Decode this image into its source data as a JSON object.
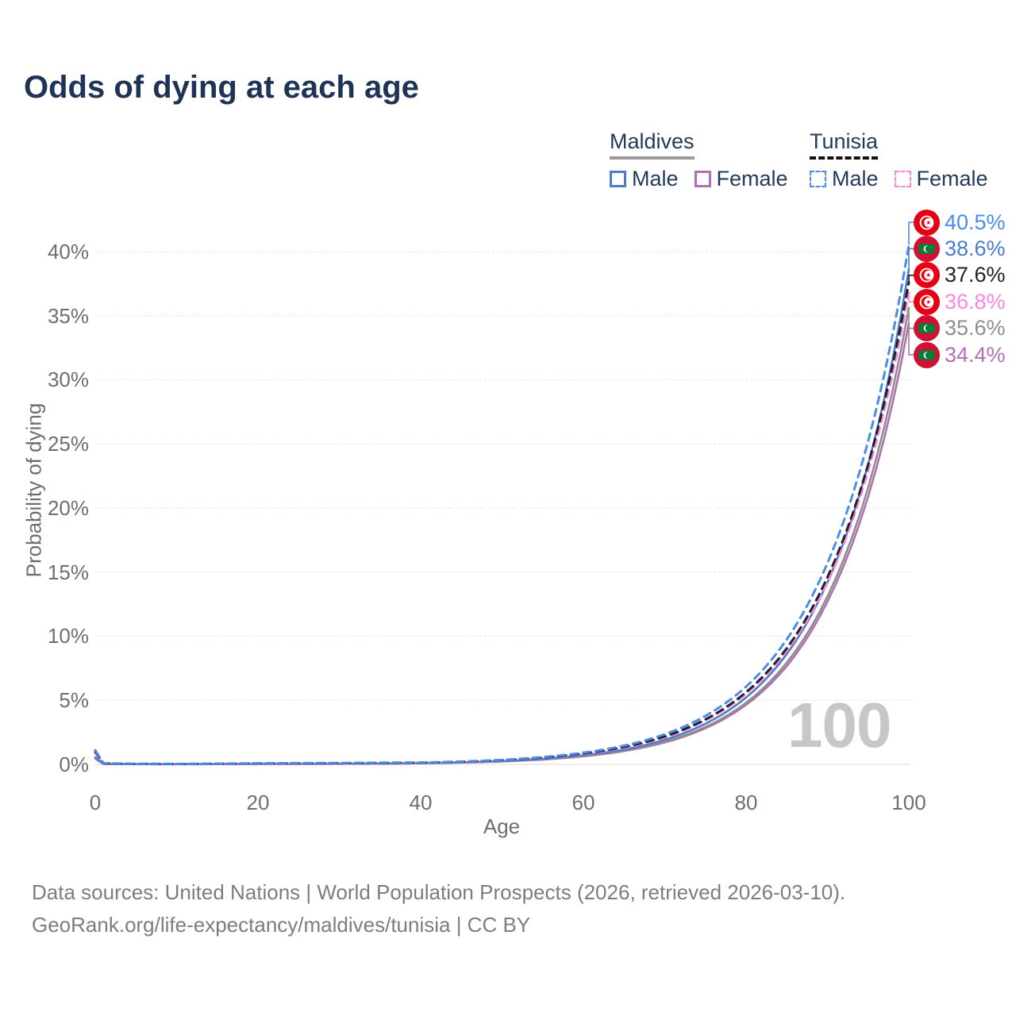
{
  "title": "Odds of dying at each age",
  "watermark": "100",
  "legend": {
    "groups": [
      {
        "country": "Maldives",
        "line_style": "solid",
        "underline_color": "#9a9a9a",
        "items": [
          {
            "label": "Male",
            "color": "#4b7ccc",
            "dashed": false
          },
          {
            "label": "Female",
            "color": "#b06fb3",
            "dashed": false
          }
        ]
      },
      {
        "country": "Tunisia",
        "line_style": "dashed",
        "underline_color": "#111111",
        "items": [
          {
            "label": "Male",
            "color": "#4a8ce8",
            "dashed": true
          },
          {
            "label": "Female",
            "color": "#f787e1",
            "dashed": true
          }
        ]
      }
    ]
  },
  "axes": {
    "x": {
      "title": "Age",
      "ticks": [
        0,
        20,
        40,
        60,
        80,
        100
      ],
      "range": [
        0,
        100
      ]
    },
    "y": {
      "title": "Probability of dying",
      "tick_labels": [
        "0%",
        "5%",
        "10%",
        "15%",
        "20%",
        "25%",
        "30%",
        "35%",
        "40%"
      ],
      "tick_values": [
        0,
        5,
        10,
        15,
        20,
        25,
        30,
        35,
        40
      ],
      "range_pct": [
        0,
        42
      ]
    }
  },
  "chart_data": {
    "type": "line",
    "title": "Odds of dying at each age",
    "xlabel": "Age",
    "ylabel": "Probability of dying",
    "grid": "horizontal-dotted",
    "legend_position": "top-right",
    "ages": [
      0,
      1,
      5,
      10,
      15,
      20,
      25,
      30,
      35,
      40,
      45,
      50,
      55,
      60,
      65,
      70,
      75,
      80,
      85,
      90,
      95,
      100
    ],
    "series": [
      {
        "name": "Tunisia Male",
        "flag": "tunisia",
        "dashed": true,
        "color": "#4a8ce8",
        "end_label": "40.5%",
        "end_value": 40.5,
        "values": [
          1.1,
          0.09,
          0.05,
          0.04,
          0.06,
          0.09,
          0.1,
          0.11,
          0.13,
          0.15,
          0.22,
          0.35,
          0.57,
          0.91,
          1.46,
          2.35,
          3.78,
          6.06,
          9.75,
          15.7,
          25.2,
          40.5
        ]
      },
      {
        "name": "Maldives Male",
        "flag": "maldives",
        "dashed": false,
        "color": "#4b7ccc",
        "end_label": "38.6%",
        "end_value": 38.6,
        "values": [
          0.55,
          0.05,
          0.02,
          0.02,
          0.03,
          0.05,
          0.06,
          0.06,
          0.07,
          0.1,
          0.16,
          0.26,
          0.43,
          0.71,
          1.16,
          1.92,
          3.17,
          5.22,
          8.61,
          14.2,
          23.4,
          38.6
        ]
      },
      {
        "name": "Tunisia",
        "flag": "tunisia",
        "dashed": true,
        "color": "#222222",
        "end_label": "37.6%",
        "end_value": 37.6,
        "values": [
          1.0,
          0.08,
          0.04,
          0.03,
          0.05,
          0.07,
          0.08,
          0.09,
          0.11,
          0.13,
          0.2,
          0.33,
          0.53,
          0.85,
          1.36,
          2.18,
          3.51,
          5.63,
          9.06,
          14.6,
          23.4,
          37.6
        ]
      },
      {
        "name": "Tunisia Female",
        "flag": "tunisia",
        "dashed": true,
        "color": "#f787e1",
        "end_label": "36.8%",
        "end_value": 36.8,
        "values": [
          0.9,
          0.07,
          0.03,
          0.03,
          0.03,
          0.04,
          0.05,
          0.06,
          0.08,
          0.12,
          0.18,
          0.3,
          0.5,
          0.8,
          1.3,
          2.1,
          3.43,
          5.51,
          8.86,
          14.2,
          22.9,
          36.8
        ]
      },
      {
        "name": "Maldives",
        "flag": "maldives",
        "dashed": false,
        "color": "#8e8e8e",
        "end_label": "35.6%",
        "end_value": 35.6,
        "values": [
          0.5,
          0.04,
          0.02,
          0.02,
          0.02,
          0.04,
          0.04,
          0.05,
          0.06,
          0.09,
          0.15,
          0.24,
          0.4,
          0.65,
          1.07,
          1.77,
          2.92,
          4.81,
          7.94,
          13.1,
          21.6,
          35.6
        ]
      },
      {
        "name": "Maldives Female",
        "flag": "maldives",
        "dashed": false,
        "color": "#b06fb3",
        "end_label": "34.4%",
        "end_value": 34.4,
        "values": [
          0.45,
          0.04,
          0.02,
          0.01,
          0.02,
          0.03,
          0.03,
          0.04,
          0.05,
          0.09,
          0.14,
          0.23,
          0.38,
          0.63,
          1.04,
          1.71,
          2.82,
          4.65,
          7.67,
          12.7,
          20.9,
          34.4
        ]
      }
    ]
  },
  "colors": {
    "title_text": "#1e3355",
    "legend_text": "#233a5c",
    "axis_text": "#6e6e6e",
    "grid": "#e2e2e2",
    "watermark": "#c7c7c7",
    "footer_text": "#7d7d7d",
    "tunisia_flag_red": "#E70013",
    "maldives_flag_red": "#D21034",
    "maldives_flag_green": "#007E3A"
  },
  "footer": {
    "line1": "Data sources: United Nations | World Population Prospects (2026, retrieved 2026-03-10).",
    "line2": "GeoRank.org/life-expectancy/maldives/tunisia | CC BY"
  }
}
